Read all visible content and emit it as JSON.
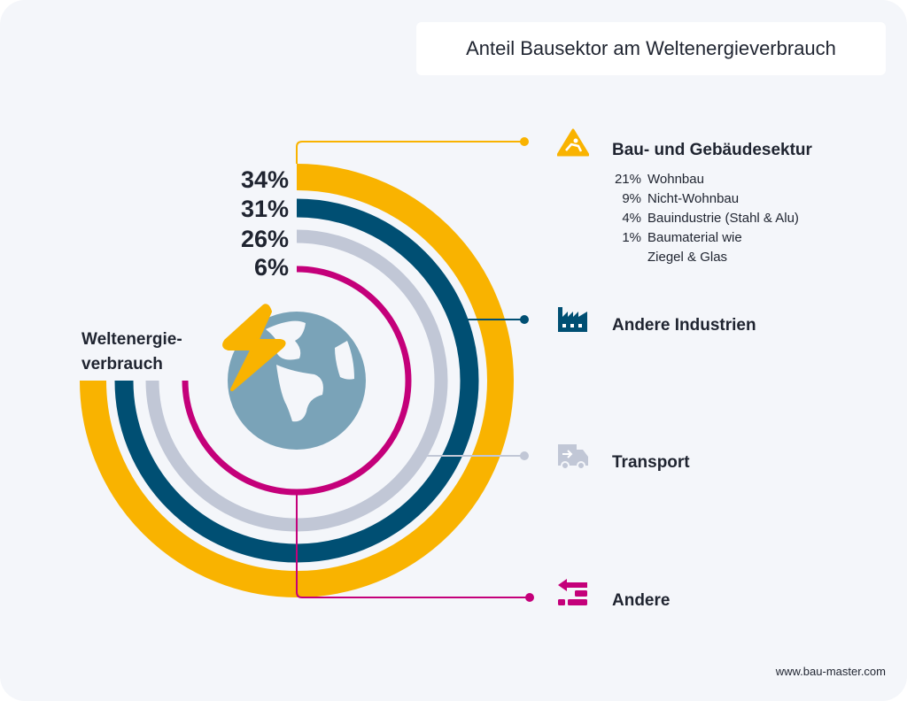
{
  "title": "Anteil Bausektor am Weltenergieverbrauch",
  "center_label": [
    "Weltenergie-",
    "verbrauch"
  ],
  "footer": "www.bau-master.com",
  "chart_data": {
    "type": "radial-bar",
    "title": "Anteil Bausektor am Weltenergieverbrauch",
    "series": [
      {
        "name": "Bau- und Gebäudesektur",
        "value": 34,
        "label": "34%",
        "color": "#f9b300",
        "icon": "construction-worker-icon"
      },
      {
        "name": "Andere Industrien",
        "value": 31,
        "label": "31%",
        "color": "#004f73",
        "icon": "factory-icon"
      },
      {
        "name": "Transport",
        "value": 26,
        "label": "26%",
        "color": "#c1c7d6",
        "icon": "truck-icon"
      },
      {
        "name": "Andere",
        "value": 6,
        "label": "6%",
        "color": "#c4007a",
        "icon": "arrow-bricks-icon"
      }
    ],
    "breakdown": [
      {
        "value": "21%",
        "label": "Wohnbau"
      },
      {
        "value": "9%",
        "label": "Nicht-Wohnbau"
      },
      {
        "value": "4%",
        "label": "Bauindustrie (Stahl & Alu)"
      },
      {
        "value": "1%",
        "label": "Baumaterial wie"
      },
      {
        "value": "",
        "label": "Ziegel & Glas"
      }
    ]
  }
}
